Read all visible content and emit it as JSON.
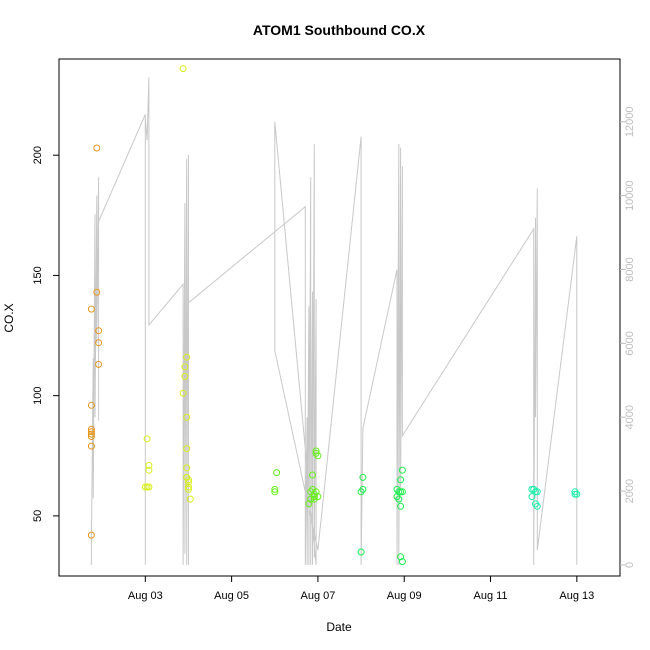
{
  "chart_data": {
    "type": "scatter",
    "title": "ATOM1 Southbound CO.X",
    "xlabel": "Date",
    "ylabel": "CO.X",
    "xlim": [
      "2025-08-01",
      "2025-08-14"
    ],
    "ylim": [
      25,
      240
    ],
    "y2lim": [
      -300,
      13700
    ],
    "x_ticks": [
      "Aug 03",
      "Aug 05",
      "Aug 07",
      "Aug 09",
      "Aug 11",
      "Aug 13"
    ],
    "x_tick_dates": [
      "2025-08-03",
      "2025-08-05",
      "2025-08-07",
      "2025-08-09",
      "2025-08-11",
      "2025-08-13"
    ],
    "y_ticks": [
      50,
      100,
      150,
      200
    ],
    "y2_ticks": [
      0,
      2000,
      4000,
      6000,
      8000,
      10000,
      12000
    ],
    "grid": false,
    "colors": {
      "line": "#c8c8c8",
      "axis": "#000000",
      "right_axis": "#bdbdbd",
      "point_colors": [
        "#e8961a",
        "#d9ef1a",
        "#66ef1a",
        "#1aef4c",
        "#1aefaa"
      ]
    },
    "point_series": [
      {
        "color_index": 0,
        "points": [
          [
            "2025-08-01 18:00",
            42
          ],
          [
            "2025-08-01 18:00",
            79
          ],
          [
            "2025-08-01 18:00",
            83
          ],
          [
            "2025-08-01 18:00",
            84
          ],
          [
            "2025-08-01 18:00",
            85
          ],
          [
            "2025-08-01 18:00",
            86
          ],
          [
            "2025-08-01 18:00",
            96
          ],
          [
            "2025-08-01 18:00",
            136
          ],
          [
            "2025-08-01 21:00",
            143
          ],
          [
            "2025-08-01 21:00",
            203
          ],
          [
            "2025-08-01 22:00",
            113
          ],
          [
            "2025-08-01 22:00",
            122
          ],
          [
            "2025-08-01 22:00",
            127
          ]
        ]
      },
      {
        "color_index": 1,
        "points": [
          [
            "2025-08-03 00:00",
            62
          ],
          [
            "2025-08-03 01:00",
            62
          ],
          [
            "2025-08-03 02:00",
            62
          ],
          [
            "2025-08-03 02:00",
            69
          ],
          [
            "2025-08-03 02:00",
            71
          ],
          [
            "2025-08-03 01:00",
            82
          ],
          [
            "2025-08-03 21:00",
            236
          ],
          [
            "2025-08-03 21:00",
            101
          ],
          [
            "2025-08-03 22:00",
            108
          ],
          [
            "2025-08-03 22:00",
            112
          ],
          [
            "2025-08-03 23:00",
            116
          ],
          [
            "2025-08-03 23:00",
            91
          ],
          [
            "2025-08-03 23:00",
            78
          ],
          [
            "2025-08-03 23:00",
            70
          ],
          [
            "2025-08-03 23:00",
            66
          ],
          [
            "2025-08-04 00:00",
            64
          ],
          [
            "2025-08-04 00:00",
            62
          ],
          [
            "2025-08-04 00:00",
            61
          ],
          [
            "2025-08-04 01:00",
            57
          ],
          [
            "2025-08-04 00:00",
            65
          ]
        ]
      },
      {
        "color_index": 2,
        "points": [
          [
            "2025-08-06 00:00",
            60
          ],
          [
            "2025-08-06 00:00",
            61
          ],
          [
            "2025-08-06 01:00",
            68
          ],
          [
            "2025-08-06 19:00",
            55
          ],
          [
            "2025-08-06 20:00",
            57
          ],
          [
            "2025-08-06 20:00",
            60
          ],
          [
            "2025-08-06 21:00",
            61
          ],
          [
            "2025-08-06 21:00",
            67
          ],
          [
            "2025-08-06 22:00",
            58
          ],
          [
            "2025-08-06 22:00",
            59
          ],
          [
            "2025-08-06 23:00",
            60
          ],
          [
            "2025-08-06 23:00",
            77
          ],
          [
            "2025-08-06 23:00",
            76
          ],
          [
            "2025-08-07 00:00",
            58
          ],
          [
            "2025-08-07 00:00",
            75
          ],
          [
            "2025-08-06 22:00",
            57
          ]
        ]
      },
      {
        "color_index": 3,
        "points": [
          [
            "2025-08-08 00:00",
            35
          ],
          [
            "2025-08-08 00:00",
            60
          ],
          [
            "2025-08-08 01:00",
            61
          ],
          [
            "2025-08-08 01:00",
            66
          ],
          [
            "2025-08-08 20:00",
            58
          ],
          [
            "2025-08-08 20:00",
            61
          ],
          [
            "2025-08-08 21:00",
            60
          ],
          [
            "2025-08-08 21:00",
            57
          ],
          [
            "2025-08-08 22:00",
            54
          ],
          [
            "2025-08-08 22:00",
            60
          ],
          [
            "2025-08-08 22:00",
            65
          ],
          [
            "2025-08-08 23:00",
            60
          ],
          [
            "2025-08-08 23:00",
            69
          ],
          [
            "2025-08-08 22:00",
            33
          ],
          [
            "2025-08-08 23:00",
            31
          ]
        ]
      },
      {
        "color_index": 4,
        "points": [
          [
            "2025-08-11 23:00",
            58
          ],
          [
            "2025-08-11 23:00",
            61
          ],
          [
            "2025-08-12 00:00",
            61
          ],
          [
            "2025-08-12 01:00",
            60
          ],
          [
            "2025-08-12 01:00",
            55
          ],
          [
            "2025-08-12 02:00",
            54
          ],
          [
            "2025-08-12 02:00",
            60
          ],
          [
            "2025-08-12 23:00",
            59
          ],
          [
            "2025-08-12 23:00",
            60
          ],
          [
            "2025-08-13 00:00",
            59
          ]
        ]
      }
    ],
    "line_series_right_axis": [
      [
        "2025-08-01 18:00",
        0
      ],
      [
        "2025-08-01 18:00",
        1200
      ],
      [
        "2025-08-01 18:00",
        500
      ],
      [
        "2025-08-01 19:00",
        5600
      ],
      [
        "2025-08-01 19:00",
        1800
      ],
      [
        "2025-08-01 20:00",
        9500
      ],
      [
        "2025-08-01 20:00",
        4000
      ],
      [
        "2025-08-01 21:00",
        10000
      ],
      [
        "2025-08-01 21:00",
        6000
      ],
      [
        "2025-08-01 22:00",
        10500
      ],
      [
        "2025-08-01 22:00",
        3900
      ],
      [
        "2025-08-01 22:00",
        9300
      ],
      [
        "2025-08-03 00:00",
        12200
      ],
      [
        "2025-08-03 00:00",
        0
      ],
      [
        "2025-08-03 00:00",
        12100
      ],
      [
        "2025-08-03 01:00",
        11500
      ],
      [
        "2025-08-03 02:00",
        13200
      ],
      [
        "2025-08-03 02:00",
        6500
      ],
      [
        "2025-08-03 21:00",
        7600
      ],
      [
        "2025-08-03 21:00",
        0
      ],
      [
        "2025-08-03 22:00",
        9800
      ],
      [
        "2025-08-03 22:00",
        300
      ],
      [
        "2025-08-03 23:00",
        11000
      ],
      [
        "2025-08-03 23:00",
        0
      ],
      [
        "2025-08-04 00:00",
        11100
      ],
      [
        "2025-08-04 00:00",
        0
      ],
      [
        "2025-08-04 00:00",
        7100
      ],
      [
        "2025-08-06 17:00",
        9700
      ],
      [
        "2025-08-06 17:00",
        0
      ],
      [
        "2025-08-06 18:00",
        4000
      ],
      [
        "2025-08-06 18:00",
        0
      ],
      [
        "2025-08-06 19:00",
        7000
      ],
      [
        "2025-08-06 19:00",
        0
      ],
      [
        "2025-08-06 20:00",
        10500
      ],
      [
        "2025-08-06 20:00",
        0
      ],
      [
        "2025-08-06 21:00",
        7400
      ],
      [
        "2025-08-06 21:00",
        0
      ],
      [
        "2025-08-06 22:00",
        11400
      ],
      [
        "2025-08-06 22:00",
        200
      ],
      [
        "2025-08-06 23:00",
        7200
      ],
      [
        "2025-08-06 23:00",
        0
      ],
      [
        "2025-08-06 00:00",
        12000
      ],
      [
        "2025-08-06 00:00",
        5800
      ],
      [
        "2025-08-07 00:00",
        400
      ],
      [
        "2025-08-08 00:00",
        11600
      ],
      [
        "2025-08-08 00:00",
        0
      ],
      [
        "2025-08-08 01:00",
        3700
      ],
      [
        "2025-08-08 20:00",
        8000
      ],
      [
        "2025-08-08 20:00",
        0
      ],
      [
        "2025-08-08 21:00",
        11400
      ],
      [
        "2025-08-08 21:00",
        0
      ],
      [
        "2025-08-08 22:00",
        11300
      ],
      [
        "2025-08-08 22:00",
        2000
      ],
      [
        "2025-08-08 23:00",
        10800
      ],
      [
        "2025-08-08 23:00",
        3500
      ],
      [
        "2025-08-12 00:00",
        9100
      ],
      [
        "2025-08-12 00:00",
        0
      ],
      [
        "2025-08-12 01:00",
        9400
      ],
      [
        "2025-08-12 01:00",
        4000
      ],
      [
        "2025-08-12 02:00",
        10200
      ],
      [
        "2025-08-12 02:00",
        400
      ],
      [
        "2025-08-13 00:00",
        8900
      ],
      [
        "2025-08-13 00:00",
        0
      ]
    ]
  }
}
